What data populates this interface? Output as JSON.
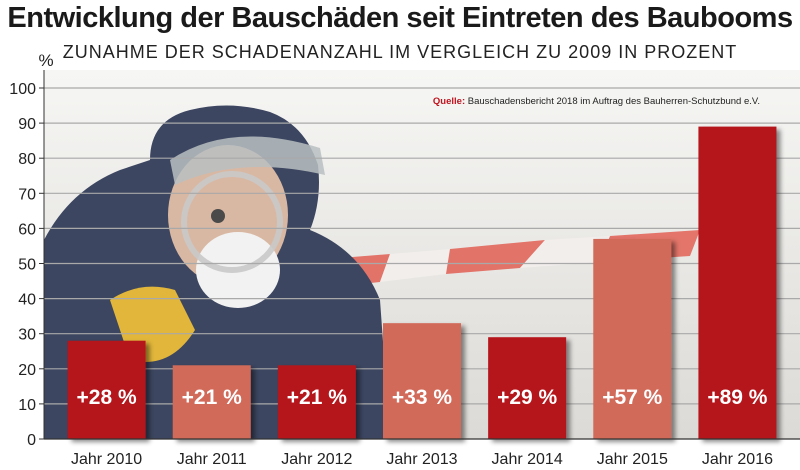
{
  "title": "Entwicklung der Bauschäden seit Eintreten des Baubooms",
  "subtitle": "ZUNAHME DER SCHADENANZAHL IM VERGLEICH ZU 2009 IN PROZENT",
  "source": {
    "label": "Quelle:",
    "text": "Bauschadensbericht 2018 im Auftrag des Bauherren-Schutzbund e.V."
  },
  "colors": {
    "dark_red": "#b5121b",
    "salmon": "#d26a5a"
  },
  "chart_data": {
    "type": "bar",
    "categories": [
      "Jahr 2010",
      "Jahr 2011",
      "Jahr 2012",
      "Jahr 2013",
      "Jahr 2014",
      "Jahr 2015",
      "Jahr 2016"
    ],
    "values": [
      28,
      21,
      21,
      33,
      29,
      57,
      89
    ],
    "data_labels": [
      "+28 %",
      "+21 %",
      "+21 %",
      "+33 %",
      "+29 %",
      "+57 %",
      "+89 %"
    ],
    "bar_colors": [
      "#b5121b",
      "#d26a5a",
      "#b5121b",
      "#d26a5a",
      "#b5121b",
      "#d26a5a",
      "#b5121b"
    ],
    "ylabel": "%",
    "ylim": [
      0,
      100
    ],
    "yticks": [
      0,
      10,
      20,
      30,
      40,
      50,
      60,
      70,
      80,
      90,
      100
    ],
    "grid": true
  }
}
